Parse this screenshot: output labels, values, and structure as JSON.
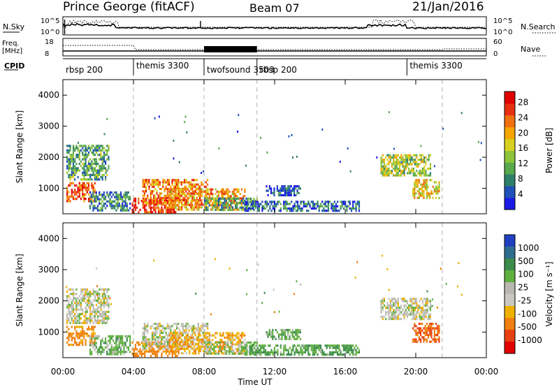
{
  "header": {
    "station": "Prince George (fitACF)",
    "beam": "Beam 07",
    "date": "21/Jan/2016"
  },
  "top_panels": {
    "nsky_label": "N.Sky",
    "nsky_ticks": [
      "10^5",
      "10^0"
    ],
    "nsearch_label": "N.Search",
    "freq_label_1": "Freq.",
    "freq_label_2": "[MHz]",
    "freq_ticks": [
      "18",
      "8"
    ],
    "nave_ticks": [
      "60",
      "0"
    ],
    "nave_label": "Nave",
    "cpid_label": "CPID"
  },
  "cpid_segments": [
    {
      "name": "rbsp 200",
      "start": 0.0,
      "end": 4.0
    },
    {
      "name": "themis 3300",
      "start": 4.0,
      "end": 8.0
    },
    {
      "name": "twofsound 3503",
      "start": 8.0,
      "end": 11.0
    },
    {
      "name": "rbsp 200",
      "start": 11.0,
      "end": 19.5
    },
    {
      "name": "themis 3300",
      "start": 19.5,
      "end": 21.5
    }
  ],
  "chart_data": [
    {
      "type": "heatmap",
      "panel": "power",
      "xlabel": "Time UT",
      "ylabel": "Slant Range [km]",
      "xlim": [
        0,
        24
      ],
      "ylim": [
        180,
        4500
      ],
      "yticks": [
        1000,
        2000,
        3000,
        4000
      ],
      "xticks": [
        0,
        4,
        8,
        12,
        16,
        20,
        24
      ],
      "xtick_labels": [
        "00:00",
        "04:00",
        "08:00",
        "12:00",
        "16:00",
        "20:00",
        "00:00"
      ],
      "colorbar_label": "Power [dB]",
      "colorbar_ticks": [
        "4",
        "8",
        "12",
        "16",
        "20",
        "24",
        "28"
      ],
      "colorbar_colors": [
        "#1a1ae6",
        "#2050b8",
        "#2e7f6c",
        "#58a84e",
        "#8cc43a",
        "#d8d020",
        "#f5a500",
        "#f07010",
        "#e83010",
        "#e00000"
      ],
      "regions": [
        {
          "t": [
            0.2,
            2.6
          ],
          "r": [
            1300,
            2400
          ],
          "v": 12
        },
        {
          "t": [
            0.2,
            1.8
          ],
          "r": [
            600,
            1200
          ],
          "v": 26
        },
        {
          "t": [
            1.5,
            3.8
          ],
          "r": [
            300,
            900
          ],
          "v": 10
        },
        {
          "t": [
            3.9,
            6.5
          ],
          "r": [
            250,
            700
          ],
          "v": 28
        },
        {
          "t": [
            4.5,
            8.2
          ],
          "r": [
            500,
            1300
          ],
          "v": 24
        },
        {
          "t": [
            6.0,
            10.3
          ],
          "r": [
            300,
            1000
          ],
          "v": 22
        },
        {
          "t": [
            8.0,
            11.0
          ],
          "r": [
            300,
            700
          ],
          "v": 12
        },
        {
          "t": [
            10.3,
            16.8
          ],
          "r": [
            250,
            600
          ],
          "v": 8
        },
        {
          "t": [
            11.5,
            13.5
          ],
          "r": [
            800,
            1100
          ],
          "v": 6
        },
        {
          "t": [
            18.0,
            20.8
          ],
          "r": [
            1400,
            2100
          ],
          "v": 16
        },
        {
          "t": [
            19.8,
            21.3
          ],
          "r": [
            700,
            1300
          ],
          "v": 20
        }
      ]
    },
    {
      "type": "heatmap",
      "panel": "velocity",
      "xlabel": "Time UT",
      "ylabel": "Slant Range [km]",
      "xlim": [
        0,
        24
      ],
      "ylim": [
        180,
        4500
      ],
      "yticks": [
        1000,
        2000,
        3000,
        4000
      ],
      "xticks": [
        0,
        4,
        8,
        12,
        16,
        20,
        24
      ],
      "xtick_labels": [
        "00:00",
        "04:00",
        "08:00",
        "12:00",
        "16:00",
        "20:00",
        "00:00"
      ],
      "colorbar_label": "Velocity [m s⁻¹]",
      "colorbar_ticks": [
        "1000",
        "500",
        "100",
        "25",
        "-25",
        "-100",
        "-500",
        "-1000"
      ],
      "colorbar_colors": [
        "#2040c0",
        "#2f6d8f",
        "#3c8c4c",
        "#60b040",
        "#b8b8b0",
        "#c8c8c0",
        "#f0b000",
        "#f08010",
        "#e84010",
        "#e00000"
      ],
      "regions": [
        {
          "t": [
            0.2,
            2.6
          ],
          "r": [
            1300,
            2400
          ],
          "v": 0
        },
        {
          "t": [
            0.2,
            1.8
          ],
          "r": [
            600,
            1200
          ],
          "v": -150
        },
        {
          "t": [
            1.5,
            3.8
          ],
          "r": [
            300,
            900
          ],
          "v": 60
        },
        {
          "t": [
            3.9,
            6.5
          ],
          "r": [
            250,
            700
          ],
          "v": -200
        },
        {
          "t": [
            4.5,
            8.2
          ],
          "r": [
            500,
            1300
          ],
          "v": 0
        },
        {
          "t": [
            6.0,
            10.3
          ],
          "r": [
            300,
            1000
          ],
          "v": -80
        },
        {
          "t": [
            8.0,
            11.0
          ],
          "r": [
            300,
            700
          ],
          "v": 40
        },
        {
          "t": [
            10.3,
            16.8
          ],
          "r": [
            250,
            600
          ],
          "v": 100
        },
        {
          "t": [
            11.5,
            13.5
          ],
          "r": [
            800,
            1100
          ],
          "v": 60
        },
        {
          "t": [
            18.0,
            20.8
          ],
          "r": [
            1400,
            2100
          ],
          "v": 0
        },
        {
          "t": [
            19.8,
            21.3
          ],
          "r": [
            700,
            1300
          ],
          "v": -500
        }
      ]
    }
  ]
}
